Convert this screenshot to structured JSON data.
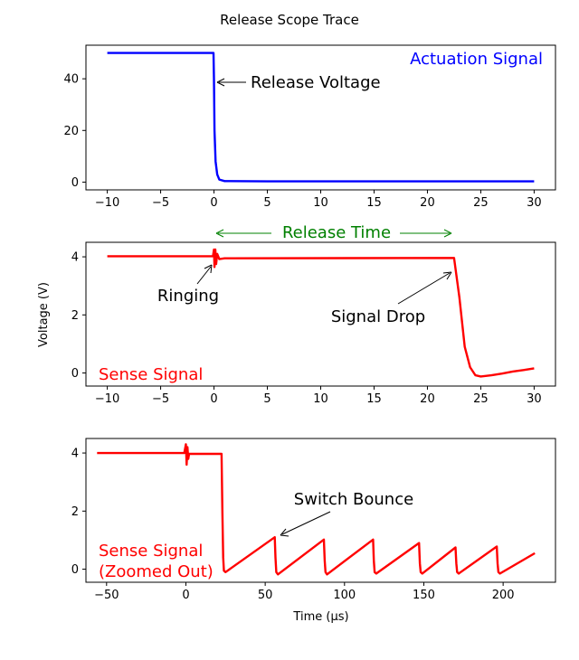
{
  "figure_title": "Release Scope Trace",
  "chart_data": [
    {
      "type": "line",
      "name": "top",
      "xlim": [
        -12,
        32
      ],
      "ylim": [
        -3,
        53
      ],
      "xticks": [
        -10,
        -5,
        0,
        5,
        10,
        15,
        20,
        25,
        30
      ],
      "yticks": [
        0,
        20,
        40
      ],
      "xlabel": "",
      "ylabel": "",
      "grid": false,
      "series": [
        {
          "name": "Actuation Signal",
          "color": "#0000ff",
          "x": [
            -10,
            -0.05,
            0.0,
            0.05,
            0.15,
            0.3,
            0.5,
            1,
            5,
            10,
            15,
            20,
            25,
            30
          ],
          "y": [
            50,
            50,
            40,
            20,
            8,
            3,
            1,
            0.4,
            0.3,
            0.3,
            0.3,
            0.3,
            0.3,
            0.3
          ]
        }
      ],
      "annotations": [
        {
          "text": "Actuation Signal",
          "color": "#0000ff"
        },
        {
          "text": "Release Voltage",
          "color": "#000000",
          "point": [
            0,
            39
          ]
        }
      ]
    },
    {
      "type": "line",
      "name": "middle",
      "xlim": [
        -12,
        32
      ],
      "ylim": [
        -0.45,
        4.5
      ],
      "xticks": [
        -10,
        -5,
        0,
        5,
        10,
        15,
        20,
        25,
        30
      ],
      "yticks": [
        0,
        2,
        4
      ],
      "xlabel": "",
      "ylabel": "Voltage (V)",
      "grid": false,
      "series": [
        {
          "name": "Sense Signal",
          "color": "#ff0000",
          "x": [
            -10,
            -0.1,
            0.0,
            0.05,
            0.12,
            0.2,
            0.3,
            0.5,
            1,
            22.5,
            23,
            23.5,
            24,
            24.5,
            25,
            26,
            27,
            28,
            29,
            30
          ],
          "y": [
            4.02,
            4.02,
            4.25,
            3.65,
            4.25,
            3.75,
            4.1,
            3.92,
            3.95,
            3.96,
            2.6,
            0.9,
            0.2,
            -0.08,
            -0.12,
            -0.08,
            -0.02,
            0.05,
            0.1,
            0.16
          ]
        }
      ],
      "annotations": [
        {
          "text": "Release Time",
          "color": "#008000",
          "span": [
            0,
            22.5
          ]
        },
        {
          "text": "Ringing",
          "color": "#000000",
          "point": [
            0,
            3.8
          ]
        },
        {
          "text": "Signal Drop",
          "color": "#000000",
          "point": [
            22.5,
            3.55
          ]
        },
        {
          "text": "Sense Signal",
          "color": "#ff0000"
        }
      ]
    },
    {
      "type": "line",
      "name": "bottom",
      "xlim": [
        -63,
        233
      ],
      "ylim": [
        -0.45,
        4.5
      ],
      "xticks": [
        -50,
        0,
        50,
        100,
        150,
        200
      ],
      "yticks": [
        0,
        2,
        4
      ],
      "xlabel": "Time (μs)",
      "ylabel": "",
      "grid": false,
      "series": [
        {
          "name": "Sense Signal (Zoomed Out)",
          "color": "#ff0000",
          "x": [
            -56,
            -1,
            0,
            0.5,
            1,
            1.5,
            2,
            22.5,
            23,
            23.5,
            24,
            25,
            56,
            56.5,
            57,
            58,
            87,
            87.5,
            88,
            89,
            118,
            118.5,
            119,
            120,
            147,
            147.5,
            148,
            149,
            170,
            170.5,
            171,
            172,
            196,
            196.5,
            197,
            198,
            220
          ],
          "y": [
            4.0,
            4.0,
            4.3,
            3.6,
            4.2,
            3.8,
            3.97,
            3.97,
            2.0,
            0.4,
            -0.05,
            -0.1,
            1.1,
            0.4,
            -0.1,
            -0.18,
            1.02,
            0.3,
            -0.1,
            -0.18,
            1.02,
            0.3,
            -0.1,
            -0.15,
            0.9,
            0.2,
            -0.1,
            -0.15,
            0.75,
            0.2,
            -0.1,
            -0.15,
            0.78,
            0.2,
            -0.1,
            -0.15,
            0.55
          ]
        }
      ],
      "annotations": [
        {
          "text": "Switch Bounce",
          "color": "#000000",
          "point": [
            56,
            1.1
          ]
        },
        {
          "text": "Sense Signal",
          "color": "#ff0000"
        },
        {
          "text": "(Zoomed Out)",
          "color": "#ff0000"
        }
      ]
    }
  ]
}
